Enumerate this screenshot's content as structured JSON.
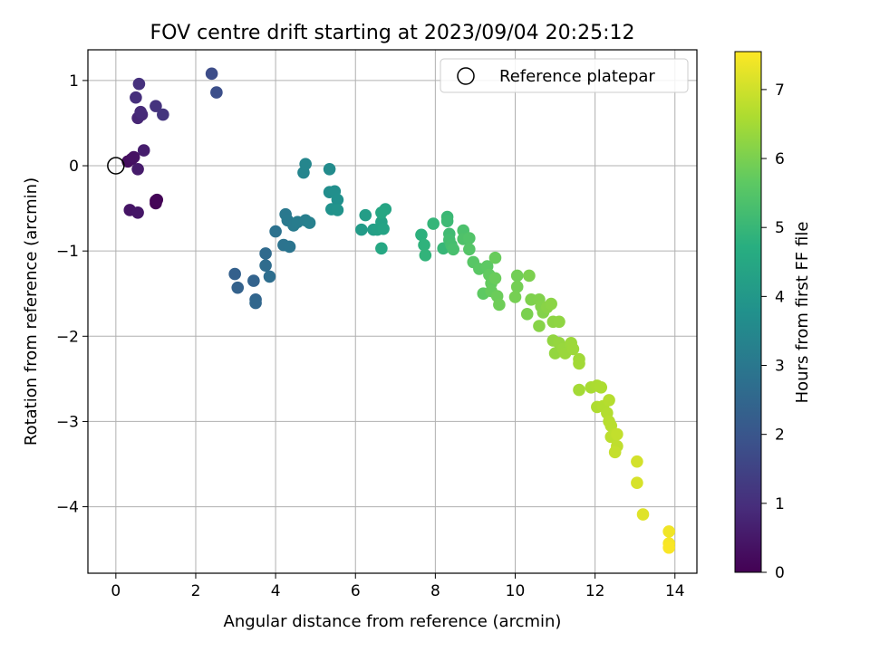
{
  "chart_data": {
    "type": "scatter",
    "title": "FOV centre drift starting at 2023/09/04 20:25:12",
    "xlabel": "Angular distance from reference (arcmin)",
    "ylabel": "Rotation from reference (arcmin)",
    "xlim": [
      -0.7,
      14.55
    ],
    "ylim": [
      -4.78,
      1.36
    ],
    "xticks": [
      0,
      2,
      4,
      6,
      8,
      10,
      12,
      14
    ],
    "yticks": [
      1,
      0,
      -1,
      -2,
      -3,
      -4
    ],
    "xtick_labels": [
      "0",
      "2",
      "4",
      "6",
      "8",
      "10",
      "12",
      "14"
    ],
    "ytick_labels": [
      "1",
      "0",
      "−1",
      "−2",
      "−3",
      "−4"
    ],
    "grid": true,
    "colormap": "viridis",
    "colorbar": {
      "label": "Hours from first FF file",
      "range": [
        0,
        7.55
      ],
      "ticks": [
        0,
        1,
        2,
        3,
        4,
        5,
        6,
        7
      ],
      "tick_labels": [
        "0",
        "1",
        "2",
        "3",
        "4",
        "5",
        "6",
        "7"
      ]
    },
    "legend": {
      "position": "top-right",
      "entries": [
        "Reference platepar"
      ]
    },
    "reference": {
      "x": 0,
      "y": 0
    },
    "points": [
      {
        "x": 1.0,
        "y": -0.41,
        "h": 0.02
      },
      {
        "x": 1.0,
        "y": -0.44,
        "h": 0.05
      },
      {
        "x": 1.03,
        "y": -0.4,
        "h": 0.08
      },
      {
        "x": 0.3,
        "y": 0.05,
        "h": 0.25
      },
      {
        "x": 0.4,
        "y": 0.08,
        "h": 0.3
      },
      {
        "x": 0.45,
        "y": 0.1,
        "h": 0.35
      },
      {
        "x": 0.35,
        "y": -0.52,
        "h": 0.4
      },
      {
        "x": 0.55,
        "y": -0.55,
        "h": 0.45
      },
      {
        "x": 0.55,
        "y": -0.04,
        "h": 0.55
      },
      {
        "x": 0.7,
        "y": 0.18,
        "h": 0.6
      },
      {
        "x": 0.55,
        "y": 0.56,
        "h": 0.8
      },
      {
        "x": 0.65,
        "y": 0.6,
        "h": 0.85
      },
      {
        "x": 0.62,
        "y": 0.63,
        "h": 0.9
      },
      {
        "x": 0.5,
        "y": 0.8,
        "h": 1.0
      },
      {
        "x": 0.58,
        "y": 0.96,
        "h": 1.05
      },
      {
        "x": 1.0,
        "y": 0.7,
        "h": 1.1
      },
      {
        "x": 1.18,
        "y": 0.6,
        "h": 1.15
      },
      {
        "x": 2.4,
        "y": 1.08,
        "h": 1.75
      },
      {
        "x": 2.52,
        "y": 0.86,
        "h": 1.8
      },
      {
        "x": 2.98,
        "y": -1.27,
        "h": 2.3
      },
      {
        "x": 3.05,
        "y": -1.43,
        "h": 2.35
      },
      {
        "x": 3.45,
        "y": -1.35,
        "h": 2.4
      },
      {
        "x": 3.5,
        "y": -1.57,
        "h": 2.45
      },
      {
        "x": 3.5,
        "y": -1.61,
        "h": 2.5
      },
      {
        "x": 3.75,
        "y": -1.03,
        "h": 2.6
      },
      {
        "x": 3.75,
        "y": -1.17,
        "h": 2.65
      },
      {
        "x": 3.85,
        "y": -1.3,
        "h": 2.7
      },
      {
        "x": 4.0,
        "y": -0.77,
        "h": 2.8
      },
      {
        "x": 4.2,
        "y": -0.93,
        "h": 2.85
      },
      {
        "x": 4.35,
        "y": -0.95,
        "h": 2.9
      },
      {
        "x": 4.25,
        "y": -0.57,
        "h": 3.0
      },
      {
        "x": 4.3,
        "y": -0.64,
        "h": 3.05
      },
      {
        "x": 4.45,
        "y": -0.7,
        "h": 3.1
      },
      {
        "x": 4.55,
        "y": -0.66,
        "h": 3.15
      },
      {
        "x": 4.75,
        "y": -0.64,
        "h": 3.2
      },
      {
        "x": 4.85,
        "y": -0.67,
        "h": 3.25
      },
      {
        "x": 4.7,
        "y": -0.08,
        "h": 3.4
      },
      {
        "x": 4.75,
        "y": 0.02,
        "h": 3.45
      },
      {
        "x": 5.35,
        "y": -0.04,
        "h": 3.6
      },
      {
        "x": 5.35,
        "y": -0.31,
        "h": 3.65
      },
      {
        "x": 5.48,
        "y": -0.3,
        "h": 3.7
      },
      {
        "x": 5.55,
        "y": -0.4,
        "h": 3.75
      },
      {
        "x": 5.4,
        "y": -0.51,
        "h": 3.8
      },
      {
        "x": 5.55,
        "y": -0.52,
        "h": 3.85
      },
      {
        "x": 6.15,
        "y": -0.75,
        "h": 4.1
      },
      {
        "x": 6.25,
        "y": -0.58,
        "h": 4.15
      },
      {
        "x": 6.45,
        "y": -0.75,
        "h": 4.2
      },
      {
        "x": 6.55,
        "y": -0.75,
        "h": 4.25
      },
      {
        "x": 6.65,
        "y": -0.66,
        "h": 4.3
      },
      {
        "x": 6.7,
        "y": -0.74,
        "h": 4.35
      },
      {
        "x": 6.75,
        "y": -0.51,
        "h": 4.4
      },
      {
        "x": 6.65,
        "y": -0.55,
        "h": 4.45
      },
      {
        "x": 6.65,
        "y": -0.97,
        "h": 4.5
      },
      {
        "x": 7.65,
        "y": -0.81,
        "h": 4.8
      },
      {
        "x": 7.72,
        "y": -0.93,
        "h": 4.85
      },
      {
        "x": 7.75,
        "y": -1.05,
        "h": 4.9
      },
      {
        "x": 7.95,
        "y": -0.68,
        "h": 4.95
      },
      {
        "x": 8.2,
        "y": -0.97,
        "h": 5.0
      },
      {
        "x": 8.3,
        "y": -0.6,
        "h": 5.05
      },
      {
        "x": 8.3,
        "y": -0.65,
        "h": 5.1
      },
      {
        "x": 8.35,
        "y": -0.8,
        "h": 5.15
      },
      {
        "x": 8.35,
        "y": -0.87,
        "h": 5.2
      },
      {
        "x": 8.4,
        "y": -0.93,
        "h": 5.25
      },
      {
        "x": 8.45,
        "y": -0.98,
        "h": 5.3
      },
      {
        "x": 8.7,
        "y": -0.76,
        "h": 5.35
      },
      {
        "x": 8.7,
        "y": -0.86,
        "h": 5.4
      },
      {
        "x": 8.85,
        "y": -0.85,
        "h": 5.45
      },
      {
        "x": 8.85,
        "y": -0.98,
        "h": 5.5
      },
      {
        "x": 8.95,
        "y": -1.13,
        "h": 5.55
      },
      {
        "x": 9.1,
        "y": -1.21,
        "h": 5.6
      },
      {
        "x": 9.3,
        "y": -1.18,
        "h": 5.62
      },
      {
        "x": 9.2,
        "y": -1.5,
        "h": 5.65
      },
      {
        "x": 9.35,
        "y": -1.28,
        "h": 5.7
      },
      {
        "x": 9.4,
        "y": -1.38,
        "h": 5.72
      },
      {
        "x": 9.4,
        "y": -1.47,
        "h": 5.75
      },
      {
        "x": 9.5,
        "y": -1.08,
        "h": 5.78
      },
      {
        "x": 9.5,
        "y": -1.32,
        "h": 5.8
      },
      {
        "x": 9.55,
        "y": -1.53,
        "h": 5.82
      },
      {
        "x": 9.6,
        "y": -1.63,
        "h": 5.85
      },
      {
        "x": 10.05,
        "y": -1.29,
        "h": 5.9
      },
      {
        "x": 10.05,
        "y": -1.42,
        "h": 5.92
      },
      {
        "x": 10.0,
        "y": -1.54,
        "h": 5.95
      },
      {
        "x": 10.3,
        "y": -1.74,
        "h": 6.0
      },
      {
        "x": 10.35,
        "y": -1.29,
        "h": 6.02
      },
      {
        "x": 10.4,
        "y": -1.57,
        "h": 6.05
      },
      {
        "x": 10.6,
        "y": -1.57,
        "h": 6.08
      },
      {
        "x": 10.65,
        "y": -1.65,
        "h": 6.1
      },
      {
        "x": 10.7,
        "y": -1.72,
        "h": 6.12
      },
      {
        "x": 10.6,
        "y": -1.88,
        "h": 6.15
      },
      {
        "x": 10.8,
        "y": -1.66,
        "h": 6.18
      },
      {
        "x": 10.9,
        "y": -1.62,
        "h": 6.2
      },
      {
        "x": 10.95,
        "y": -1.83,
        "h": 6.22
      },
      {
        "x": 11.1,
        "y": -1.83,
        "h": 6.25
      },
      {
        "x": 10.95,
        "y": -2.05,
        "h": 6.28
      },
      {
        "x": 11.0,
        "y": -2.2,
        "h": 6.3
      },
      {
        "x": 11.1,
        "y": -2.08,
        "h": 6.32
      },
      {
        "x": 11.2,
        "y": -2.15,
        "h": 6.35
      },
      {
        "x": 11.25,
        "y": -2.2,
        "h": 6.38
      },
      {
        "x": 11.4,
        "y": -2.08,
        "h": 6.4
      },
      {
        "x": 11.45,
        "y": -2.15,
        "h": 6.42
      },
      {
        "x": 11.6,
        "y": -2.27,
        "h": 6.45
      },
      {
        "x": 11.6,
        "y": -2.32,
        "h": 6.48
      },
      {
        "x": 11.6,
        "y": -2.63,
        "h": 6.5
      },
      {
        "x": 11.9,
        "y": -2.6,
        "h": 6.55
      },
      {
        "x": 12.05,
        "y": -2.58,
        "h": 6.58
      },
      {
        "x": 12.15,
        "y": -2.6,
        "h": 6.6
      },
      {
        "x": 12.05,
        "y": -2.83,
        "h": 6.62
      },
      {
        "x": 12.2,
        "y": -2.82,
        "h": 6.65
      },
      {
        "x": 12.3,
        "y": -2.9,
        "h": 6.68
      },
      {
        "x": 12.35,
        "y": -2.75,
        "h": 6.7
      },
      {
        "x": 12.35,
        "y": -3.0,
        "h": 6.72
      },
      {
        "x": 12.4,
        "y": -3.05,
        "h": 6.75
      },
      {
        "x": 12.4,
        "y": -3.18,
        "h": 6.78
      },
      {
        "x": 12.5,
        "y": -3.15,
        "h": 6.8
      },
      {
        "x": 12.55,
        "y": -3.29,
        "h": 6.82
      },
      {
        "x": 12.55,
        "y": -3.15,
        "h": 6.85
      },
      {
        "x": 12.5,
        "y": -3.36,
        "h": 6.88
      },
      {
        "x": 13.05,
        "y": -3.47,
        "h": 7.05
      },
      {
        "x": 13.05,
        "y": -3.72,
        "h": 7.1
      },
      {
        "x": 13.2,
        "y": -4.09,
        "h": 7.2
      },
      {
        "x": 13.85,
        "y": -4.29,
        "h": 7.4
      },
      {
        "x": 13.85,
        "y": -4.43,
        "h": 7.45
      },
      {
        "x": 13.85,
        "y": -4.48,
        "h": 7.5
      }
    ]
  }
}
